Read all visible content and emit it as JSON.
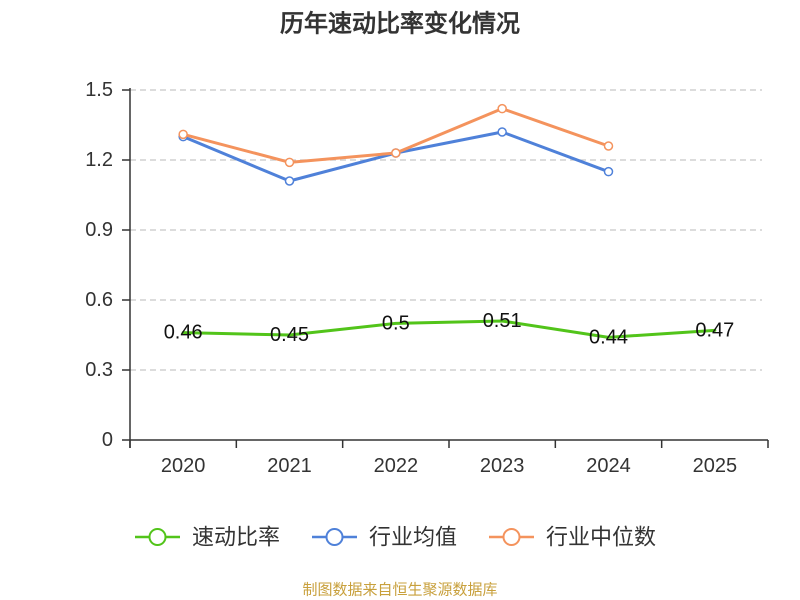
{
  "chart_data": {
    "type": "line",
    "title": "历年速动比率变化情况",
    "xlabel": "",
    "ylabel": "",
    "categories": [
      "2020",
      "2021",
      "2022",
      "2023",
      "2024",
      "2025"
    ],
    "ylim": [
      0,
      1.5
    ],
    "yticks": [
      "0",
      "0.3",
      "0.6",
      "0.9",
      "1.2",
      "1.5"
    ],
    "grid": true,
    "legend_position": "bottom",
    "series": [
      {
        "name": "速动比率",
        "color": "#52c41a",
        "values": [
          0.46,
          0.45,
          0.5,
          0.51,
          0.44,
          0.47
        ],
        "show_labels": true,
        "show_markers": false
      },
      {
        "name": "行业均值",
        "color": "#4f81d9",
        "values": [
          1.3,
          1.11,
          1.23,
          1.32,
          1.15,
          null
        ],
        "show_labels": false,
        "show_markers": true
      },
      {
        "name": "行业中位数",
        "color": "#f4935d",
        "values": [
          1.31,
          1.19,
          1.23,
          1.42,
          1.26,
          null
        ],
        "show_labels": false,
        "show_markers": true
      }
    ]
  },
  "footer": {
    "source": "制图数据来自恒生聚源数据库",
    "color": "#c8a03c"
  }
}
